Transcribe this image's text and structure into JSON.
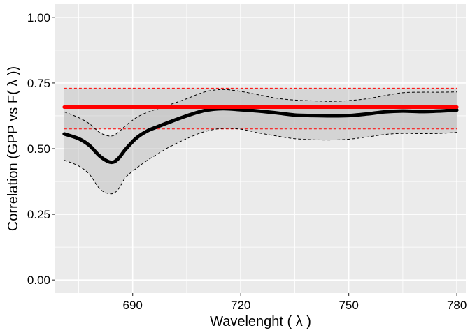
{
  "chart_data": {
    "type": "line",
    "xlabel": "Wavelenght ( λ )",
    "ylabel": "Correlation (GPP vs F( λ ))",
    "xlim": [
      668.5,
      782.5
    ],
    "ylim": [
      -0.05,
      1.05
    ],
    "x_ticks": [
      690,
      720,
      750,
      780
    ],
    "x_tick_labels": [
      "690",
      "720",
      "750",
      "780"
    ],
    "y_ticks": [
      0.0,
      0.25,
      0.5,
      0.75,
      1.0
    ],
    "y_tick_labels": [
      "0.00",
      "0.25",
      "0.50",
      "0.75",
      "1.00"
    ],
    "grid": true,
    "x": [
      671,
      675,
      678,
      681,
      684,
      686,
      688,
      691,
      694,
      697,
      700,
      705,
      710,
      715,
      720,
      725,
      730,
      735,
      740,
      745,
      750,
      755,
      760,
      765,
      770,
      775,
      780
    ],
    "series": [
      {
        "name": "",
        "role": "mean",
        "color": "#000000",
        "values": [
          0.556,
          0.538,
          0.512,
          0.47,
          0.448,
          0.462,
          0.497,
          0.54,
          0.567,
          0.584,
          0.6,
          0.625,
          0.645,
          0.652,
          0.648,
          0.643,
          0.636,
          0.628,
          0.626,
          0.625,
          0.626,
          0.632,
          0.64,
          0.643,
          0.641,
          0.643,
          0.647
        ]
      },
      {
        "name": "",
        "role": "upper",
        "color": "#000000",
        "values": [
          0.64,
          0.618,
          0.595,
          0.56,
          0.548,
          0.562,
          0.587,
          0.618,
          0.638,
          0.652,
          0.666,
          0.69,
          0.716,
          0.725,
          0.718,
          0.705,
          0.692,
          0.685,
          0.682,
          0.68,
          0.683,
          0.69,
          0.702,
          0.713,
          0.715,
          0.715,
          0.716
        ]
      },
      {
        "name": "",
        "role": "lower",
        "color": "#000000",
        "values": [
          0.456,
          0.434,
          0.402,
          0.345,
          0.328,
          0.345,
          0.39,
          0.425,
          0.455,
          0.48,
          0.505,
          0.538,
          0.565,
          0.577,
          0.574,
          0.56,
          0.548,
          0.538,
          0.534,
          0.533,
          0.536,
          0.544,
          0.554,
          0.558,
          0.557,
          0.558,
          0.562
        ]
      }
    ],
    "reference": {
      "color": "#ff0000",
      "x_range": [
        671,
        780
      ],
      "value": 0.658,
      "upper": 0.73,
      "lower": 0.575
    }
  }
}
